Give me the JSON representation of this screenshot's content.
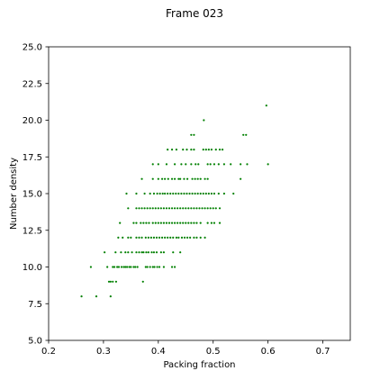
{
  "chart_data": {
    "type": "scatter",
    "title": "Frame 023",
    "xlabel": "Packing fraction",
    "ylabel": "Number density",
    "xlim": [
      0.2,
      0.75
    ],
    "ylim": [
      5.0,
      25.0
    ],
    "xticks": [
      0.2,
      0.3,
      0.4,
      0.5,
      0.6,
      0.7
    ],
    "xtick_labels": [
      "0.2",
      "0.3",
      "0.4",
      "0.5",
      "0.6",
      "0.7"
    ],
    "yticks": [
      5.0,
      7.5,
      10.0,
      12.5,
      15.0,
      17.5,
      20.0,
      22.5,
      25.0
    ],
    "ytick_labels": [
      "5.0",
      "7.5",
      "10.0",
      "12.5",
      "15.0",
      "17.5",
      "20.0",
      "22.5",
      "25.0"
    ],
    "grid": false,
    "marker_color": "#008000",
    "points": [
      [
        0.26,
        8
      ],
      [
        0.287,
        8
      ],
      [
        0.313,
        8
      ],
      [
        0.372,
        9
      ],
      [
        0.31,
        9
      ],
      [
        0.313,
        9
      ],
      [
        0.317,
        9
      ],
      [
        0.323,
        9
      ],
      [
        0.277,
        10
      ],
      [
        0.307,
        10
      ],
      [
        0.317,
        10
      ],
      [
        0.32,
        10
      ],
      [
        0.325,
        10
      ],
      [
        0.328,
        10
      ],
      [
        0.333,
        10
      ],
      [
        0.337,
        10
      ],
      [
        0.34,
        10
      ],
      [
        0.343,
        10
      ],
      [
        0.347,
        10
      ],
      [
        0.35,
        10
      ],
      [
        0.355,
        10
      ],
      [
        0.358,
        10
      ],
      [
        0.362,
        10
      ],
      [
        0.377,
        10
      ],
      [
        0.38,
        10
      ],
      [
        0.385,
        10
      ],
      [
        0.39,
        10
      ],
      [
        0.393,
        10
      ],
      [
        0.398,
        10
      ],
      [
        0.402,
        10
      ],
      [
        0.41,
        10
      ],
      [
        0.425,
        10
      ],
      [
        0.43,
        10
      ],
      [
        0.302,
        11
      ],
      [
        0.322,
        11
      ],
      [
        0.332,
        11
      ],
      [
        0.34,
        11
      ],
      [
        0.345,
        11
      ],
      [
        0.352,
        11
      ],
      [
        0.36,
        11
      ],
      [
        0.365,
        11
      ],
      [
        0.37,
        11
      ],
      [
        0.373,
        11
      ],
      [
        0.378,
        11
      ],
      [
        0.382,
        11
      ],
      [
        0.388,
        11
      ],
      [
        0.392,
        11
      ],
      [
        0.397,
        11
      ],
      [
        0.405,
        11
      ],
      [
        0.41,
        11
      ],
      [
        0.427,
        11
      ],
      [
        0.44,
        11
      ],
      [
        0.327,
        12
      ],
      [
        0.335,
        12
      ],
      [
        0.345,
        12
      ],
      [
        0.35,
        12
      ],
      [
        0.36,
        12
      ],
      [
        0.365,
        12
      ],
      [
        0.37,
        12
      ],
      [
        0.377,
        12
      ],
      [
        0.382,
        12
      ],
      [
        0.387,
        12
      ],
      [
        0.392,
        12
      ],
      [
        0.397,
        12
      ],
      [
        0.402,
        12
      ],
      [
        0.407,
        12
      ],
      [
        0.412,
        12
      ],
      [
        0.417,
        12
      ],
      [
        0.422,
        12
      ],
      [
        0.427,
        12
      ],
      [
        0.433,
        12
      ],
      [
        0.437,
        12
      ],
      [
        0.443,
        12
      ],
      [
        0.448,
        12
      ],
      [
        0.453,
        12
      ],
      [
        0.458,
        12
      ],
      [
        0.465,
        12
      ],
      [
        0.47,
        12
      ],
      [
        0.477,
        12
      ],
      [
        0.485,
        12
      ],
      [
        0.33,
        13
      ],
      [
        0.355,
        13
      ],
      [
        0.36,
        13
      ],
      [
        0.368,
        13
      ],
      [
        0.373,
        13
      ],
      [
        0.378,
        13
      ],
      [
        0.383,
        13
      ],
      [
        0.39,
        13
      ],
      [
        0.395,
        13
      ],
      [
        0.4,
        13
      ],
      [
        0.405,
        13
      ],
      [
        0.41,
        13
      ],
      [
        0.415,
        13
      ],
      [
        0.42,
        13
      ],
      [
        0.425,
        13
      ],
      [
        0.43,
        13
      ],
      [
        0.435,
        13
      ],
      [
        0.44,
        13
      ],
      [
        0.445,
        13
      ],
      [
        0.45,
        13
      ],
      [
        0.455,
        13
      ],
      [
        0.46,
        13
      ],
      [
        0.465,
        13
      ],
      [
        0.47,
        13
      ],
      [
        0.477,
        13
      ],
      [
        0.49,
        13
      ],
      [
        0.497,
        13
      ],
      [
        0.502,
        13
      ],
      [
        0.512,
        13
      ],
      [
        0.345,
        14
      ],
      [
        0.36,
        14
      ],
      [
        0.365,
        14
      ],
      [
        0.37,
        14
      ],
      [
        0.375,
        14
      ],
      [
        0.38,
        14
      ],
      [
        0.385,
        14
      ],
      [
        0.39,
        14
      ],
      [
        0.395,
        14
      ],
      [
        0.4,
        14
      ],
      [
        0.405,
        14
      ],
      [
        0.41,
        14
      ],
      [
        0.415,
        14
      ],
      [
        0.42,
        14
      ],
      [
        0.425,
        14
      ],
      [
        0.43,
        14
      ],
      [
        0.435,
        14
      ],
      [
        0.44,
        14
      ],
      [
        0.445,
        14
      ],
      [
        0.45,
        14
      ],
      [
        0.455,
        14
      ],
      [
        0.46,
        14
      ],
      [
        0.465,
        14
      ],
      [
        0.47,
        14
      ],
      [
        0.475,
        14
      ],
      [
        0.48,
        14
      ],
      [
        0.485,
        14
      ],
      [
        0.49,
        14
      ],
      [
        0.495,
        14
      ],
      [
        0.5,
        14
      ],
      [
        0.505,
        14
      ],
      [
        0.512,
        14
      ],
      [
        0.342,
        15
      ],
      [
        0.36,
        15
      ],
      [
        0.375,
        15
      ],
      [
        0.385,
        15
      ],
      [
        0.392,
        15
      ],
      [
        0.398,
        15
      ],
      [
        0.403,
        15
      ],
      [
        0.408,
        15
      ],
      [
        0.412,
        15
      ],
      [
        0.417,
        15
      ],
      [
        0.422,
        15
      ],
      [
        0.427,
        15
      ],
      [
        0.432,
        15
      ],
      [
        0.437,
        15
      ],
      [
        0.442,
        15
      ],
      [
        0.447,
        15
      ],
      [
        0.452,
        15
      ],
      [
        0.457,
        15
      ],
      [
        0.462,
        15
      ],
      [
        0.467,
        15
      ],
      [
        0.472,
        15
      ],
      [
        0.477,
        15
      ],
      [
        0.482,
        15
      ],
      [
        0.487,
        15
      ],
      [
        0.492,
        15
      ],
      [
        0.497,
        15
      ],
      [
        0.502,
        15
      ],
      [
        0.51,
        15
      ],
      [
        0.52,
        15
      ],
      [
        0.537,
        15
      ],
      [
        0.37,
        16
      ],
      [
        0.39,
        16
      ],
      [
        0.4,
        16
      ],
      [
        0.407,
        16
      ],
      [
        0.412,
        16
      ],
      [
        0.418,
        16
      ],
      [
        0.425,
        16
      ],
      [
        0.43,
        16
      ],
      [
        0.437,
        16
      ],
      [
        0.44,
        16
      ],
      [
        0.447,
        16
      ],
      [
        0.453,
        16
      ],
      [
        0.462,
        16
      ],
      [
        0.467,
        16
      ],
      [
        0.472,
        16
      ],
      [
        0.477,
        16
      ],
      [
        0.485,
        16
      ],
      [
        0.49,
        16
      ],
      [
        0.55,
        16
      ],
      [
        0.39,
        17
      ],
      [
        0.4,
        17
      ],
      [
        0.415,
        17
      ],
      [
        0.43,
        17
      ],
      [
        0.442,
        17
      ],
      [
        0.45,
        17
      ],
      [
        0.46,
        17
      ],
      [
        0.468,
        17
      ],
      [
        0.473,
        17
      ],
      [
        0.49,
        17
      ],
      [
        0.495,
        17
      ],
      [
        0.502,
        17
      ],
      [
        0.51,
        17
      ],
      [
        0.52,
        17
      ],
      [
        0.532,
        17
      ],
      [
        0.55,
        17
      ],
      [
        0.562,
        17
      ],
      [
        0.6,
        17
      ],
      [
        0.417,
        18
      ],
      [
        0.425,
        18
      ],
      [
        0.433,
        18
      ],
      [
        0.445,
        18
      ],
      [
        0.452,
        18
      ],
      [
        0.46,
        18
      ],
      [
        0.465,
        18
      ],
      [
        0.482,
        18
      ],
      [
        0.487,
        18
      ],
      [
        0.492,
        18
      ],
      [
        0.497,
        18
      ],
      [
        0.505,
        18
      ],
      [
        0.512,
        18
      ],
      [
        0.517,
        18
      ],
      [
        0.46,
        19
      ],
      [
        0.465,
        19
      ],
      [
        0.555,
        19
      ],
      [
        0.56,
        19
      ],
      [
        0.483,
        20
      ],
      [
        0.597,
        21
      ]
    ]
  }
}
